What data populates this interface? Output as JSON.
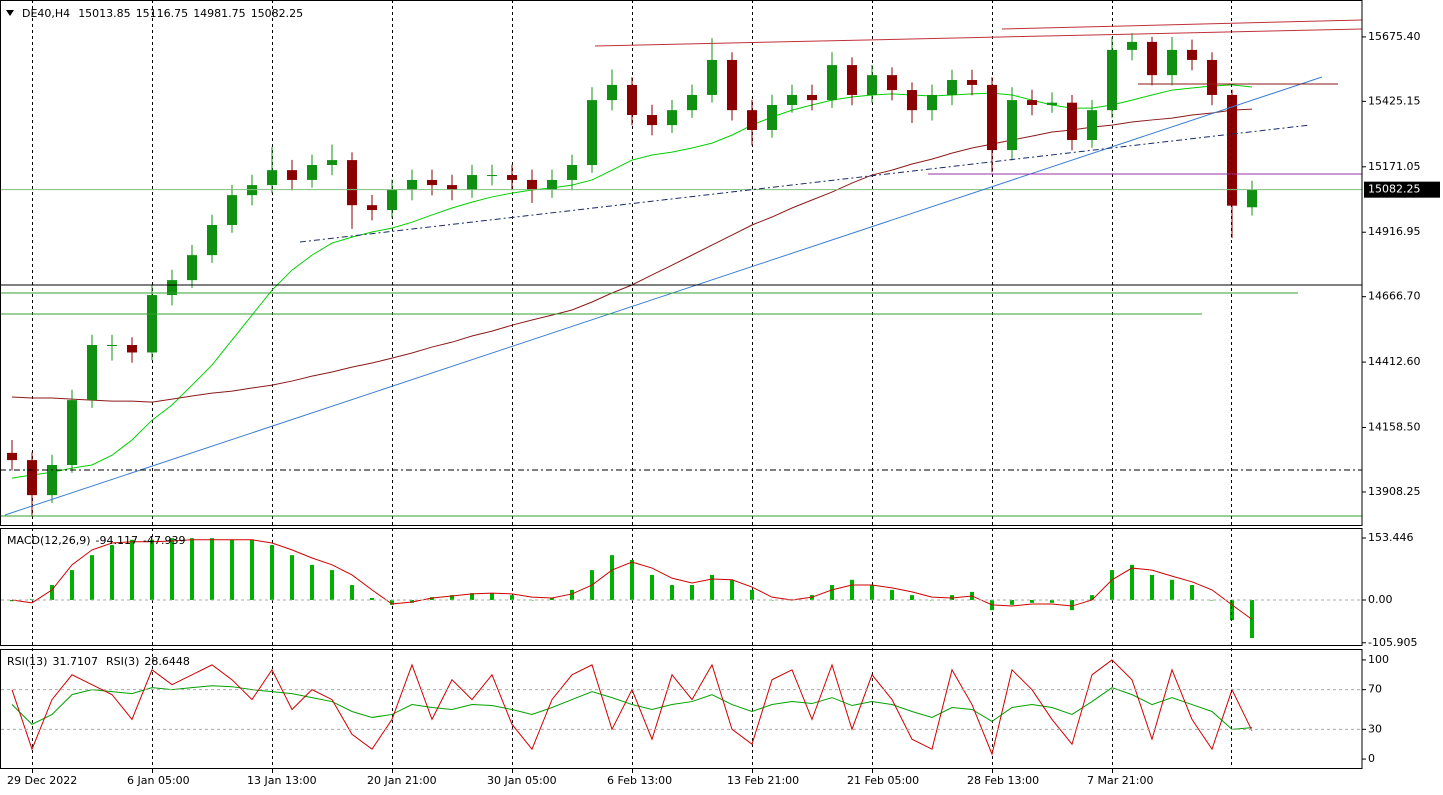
{
  "chart_data": [
    {
      "type": "candlestick",
      "title": "DE40,H4",
      "categories": [
        null,
        "29 Dec 2022",
        null,
        null,
        null,
        null,
        null,
        "6 Jan 05:00",
        null,
        null,
        null,
        null,
        null,
        "13 Jan 13:00",
        null,
        null,
        null,
        null,
        null,
        "20 Jan 21:00",
        null,
        null,
        null,
        null,
        null,
        "30 Jan 05:00",
        null,
        null,
        null,
        null,
        null,
        "6 Feb 13:00",
        null,
        null,
        null,
        null,
        null,
        "13 Feb 21:00",
        null,
        null,
        null,
        null,
        null,
        "21 Feb 05:00",
        null,
        null,
        null,
        null,
        null,
        "28 Feb 13:00",
        null,
        null,
        null,
        null,
        null,
        "7 Mar 21:00",
        null,
        null,
        null,
        null,
        null,
        null,
        null
      ],
      "open": [
        14060,
        14032,
        13896,
        14013,
        14265,
        14479,
        14479,
        14450,
        14673,
        14731,
        14828,
        14945,
        15061,
        15100,
        15158,
        15120,
        15178,
        15197,
        15022,
        15003,
        15081,
        15120,
        15100,
        15081,
        15139,
        15139,
        15120,
        15081,
        15120,
        15178,
        15430,
        15489,
        15372,
        15333,
        15391,
        15450,
        15586,
        15391,
        15314,
        15411,
        15450,
        15430,
        15566,
        15450,
        15527,
        15469,
        15391,
        15450,
        15508,
        15489,
        15236,
        15430,
        15411,
        15420,
        15275,
        15391,
        15625,
        15656,
        15527,
        15625,
        15586,
        15450,
        15013.85
      ],
      "high": [
        14110,
        14062,
        14053,
        14305,
        14519,
        14519,
        14509,
        14713,
        14771,
        14868,
        14985,
        15101,
        15140,
        15248,
        15198,
        15218,
        15257,
        15227,
        15062,
        15121,
        15160,
        15160,
        15140,
        15179,
        15179,
        15179,
        15160,
        15160,
        15218,
        15480,
        15549,
        15519,
        15412,
        15431,
        15490,
        15670,
        15616,
        15431,
        15451,
        15490,
        15490,
        15616,
        15596,
        15567,
        15557,
        15499,
        15490,
        15548,
        15548,
        15519,
        15480,
        15470,
        15460,
        15450,
        15431,
        15675,
        15690,
        15676,
        15675,
        15665,
        15616,
        15470,
        15116.75
      ],
      "low": [
        13992,
        13815,
        13866,
        13983,
        14235,
        14419,
        14410,
        14420,
        14633,
        14701,
        14798,
        14915,
        15021,
        15070,
        15080,
        15090,
        15138,
        14930,
        14963,
        14973,
        15041,
        15060,
        15041,
        15051,
        15099,
        15080,
        15031,
        15051,
        15080,
        15148,
        15390,
        15332,
        15293,
        15303,
        15361,
        15420,
        15351,
        15254,
        15284,
        15381,
        15390,
        15400,
        15410,
        15420,
        15429,
        15341,
        15351,
        15410,
        15449,
        15150,
        15196,
        15371,
        15381,
        15235,
        15245,
        15361,
        15585,
        15487,
        15487,
        15546,
        15410,
        14894,
        14981.75
      ],
      "close": [
        14032,
        13896,
        14013,
        14265,
        14479,
        14479,
        14450,
        14673,
        14731,
        14828,
        14945,
        15061,
        15100,
        15158,
        15120,
        15178,
        15197,
        15022,
        15003,
        15081,
        15120,
        15100,
        15081,
        15139,
        15139,
        15120,
        15081,
        15120,
        15178,
        15430,
        15489,
        15372,
        15333,
        15391,
        15450,
        15586,
        15391,
        15314,
        15411,
        15450,
        15430,
        15566,
        15450,
        15527,
        15469,
        15391,
        15450,
        15508,
        15489,
        15236,
        15430,
        15411,
        15420,
        15275,
        15391,
        15625,
        15656,
        15527,
        15625,
        15586,
        15450,
        15020,
        15082.25
      ],
      "up_color": "#109010",
      "down_color": "#8b0000",
      "price_line_color": "#7fbf7f",
      "series": [
        {
          "color": "#00d000",
          "values": [
            13962,
            13974,
            13985,
            14001,
            14013,
            14051,
            14110,
            14187,
            14246,
            14323,
            14401,
            14498,
            14595,
            14692,
            14770,
            14828,
            14875,
            14898,
            14918,
            14933,
            14956,
            14984,
            15011,
            15034,
            15054,
            15069,
            15081,
            15089,
            15100,
            15120,
            15158,
            15197,
            15217,
            15228,
            15244,
            15263,
            15294,
            15333,
            15364,
            15391,
            15411,
            15430,
            15442,
            15450,
            15454,
            15450,
            15446,
            15450,
            15454,
            15457,
            15450,
            15430,
            15411,
            15399,
            15399,
            15411,
            15430,
            15450,
            15469,
            15477,
            15485,
            15489,
            15481
          ]
        },
        {
          "color": "#8b1a1a",
          "values": [
            14277,
            14273,
            14273,
            14269,
            14265,
            14261,
            14261,
            14257,
            14269,
            14281,
            14292,
            14300,
            14312,
            14323,
            14339,
            14358,
            14374,
            14393,
            14409,
            14428,
            14448,
            14471,
            14490,
            14514,
            14533,
            14556,
            14576,
            14595,
            14615,
            14646,
            14681,
            14712,
            14751,
            14789,
            14828,
            14867,
            14906,
            14945,
            14976,
            15011,
            15042,
            15073,
            15108,
            15139,
            15158,
            15182,
            15201,
            15224,
            15244,
            15259,
            15275,
            15290,
            15306,
            15314,
            15325,
            15333,
            15345,
            15353,
            15360,
            15372,
            15380,
            15391,
            15395
          ]
        }
      ],
      "ylim": [
        13780,
        15811
      ],
      "yticks": [
        {
          "value": 15675.4,
          "label": "15675.40"
        },
        15425.15,
        15171.05,
        14916.95,
        {
          "value": 14666.7,
          "label": "14666.70"
        },
        {
          "value": 14412.6,
          "label": "14412.60"
        },
        {
          "value": 14158.5,
          "label": "14158.50"
        },
        13908.25
      ],
      "xgrid": true
    },
    {
      "type": "macd",
      "title": "MACD(12,26,9)",
      "histogram": [
        -3,
        2,
        37,
        74,
        111,
        136,
        149,
        149,
        153,
        153,
        153,
        149,
        149,
        136,
        111,
        87,
        74,
        37,
        5,
        -12,
        -7,
        7,
        12,
        17,
        17,
        12,
        0,
        5,
        25,
        74,
        111,
        99,
        62,
        37,
        37,
        62,
        50,
        25,
        0,
        0,
        12,
        37,
        50,
        37,
        25,
        12,
        0,
        12,
        20,
        -25,
        -12,
        -7,
        -7,
        -25,
        12,
        74,
        87,
        62,
        50,
        37,
        0,
        -50,
        -94.117
      ],
      "signal": [
        0,
        -7,
        25,
        87,
        124,
        141,
        144,
        144,
        146,
        149,
        149,
        149,
        149,
        141,
        124,
        104,
        87,
        62,
        25,
        -10,
        -5,
        5,
        10,
        15,
        17,
        15,
        7,
        5,
        15,
        37,
        74,
        94,
        79,
        54,
        42,
        52,
        50,
        32,
        7,
        0,
        7,
        25,
        37,
        37,
        30,
        20,
        7,
        5,
        10,
        -12,
        -15,
        -10,
        -10,
        -15,
        0,
        50,
        79,
        74,
        59,
        45,
        25,
        -12,
        -47.939
      ],
      "histogram_color": "#00b000",
      "signal_color": "#d00000",
      "ylim": [
        -111.4,
        175.7
      ],
      "yticks": [
        153.446,
        {
          "value": 0,
          "label": "0.00"
        },
        -105.905
      ],
      "levels": [
        0
      ]
    },
    {
      "type": "rsi",
      "series": [
        {
          "name": "RSI(13)",
          "color": "#00a000",
          "values": [
            55,
            35,
            45,
            65,
            70,
            68,
            66,
            72,
            70,
            72,
            74,
            73,
            70,
            68,
            66,
            62,
            58,
            48,
            42,
            45,
            55,
            52,
            50,
            55,
            54,
            50,
            45,
            52,
            60,
            68,
            62,
            55,
            50,
            55,
            58,
            65,
            55,
            48,
            55,
            58,
            56,
            62,
            54,
            58,
            55,
            48,
            42,
            52,
            50,
            38,
            52,
            55,
            52,
            45,
            58,
            72,
            65,
            55,
            62,
            55,
            48,
            30,
            31.7107
          ]
        },
        {
          "name": "RSI(3)",
          "color": "#d00000",
          "values": [
            70,
            10,
            60,
            85,
            75,
            65,
            40,
            90,
            75,
            85,
            95,
            80,
            60,
            90,
            50,
            70,
            60,
            25,
            10,
            40,
            95,
            40,
            80,
            60,
            85,
            35,
            10,
            60,
            85,
            95,
            30,
            70,
            20,
            85,
            60,
            95,
            30,
            15,
            80,
            90,
            40,
            95,
            30,
            85,
            60,
            20,
            10,
            90,
            55,
            5,
            90,
            70,
            40,
            15,
            85,
            100,
            80,
            20,
            90,
            40,
            10,
            70,
            28.6448
          ]
        }
      ],
      "ylim": [
        -9,
        110
      ],
      "yticks": [
        100,
        70,
        30,
        0
      ],
      "levels": [
        70,
        30
      ]
    }
  ]
}
